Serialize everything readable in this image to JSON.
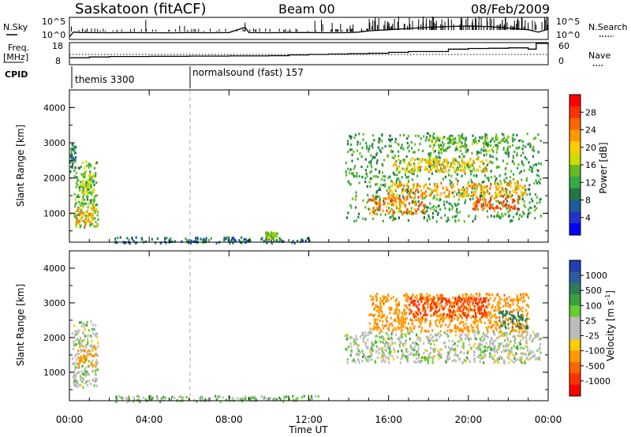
{
  "header": {
    "site": "Saskatoon (fitACF)",
    "beam": "Beam 00",
    "date": "08/Feb/2009"
  },
  "labels": {
    "nsky": "N.Sky",
    "nsky_top": "10^5",
    "nsky_bottom": "10^0",
    "nsearch": "N.Search",
    "nsearch_top": "10^5",
    "nsearch_bottom": "10^0",
    "freq_line1": "Freq.",
    "freq_line2": "[MHz]",
    "freq_top": "18",
    "freq_bottom": "8",
    "nave": "Nave",
    "nave_top": "60",
    "nave_bottom": "0",
    "cpid": "CPID",
    "cpid_1": "themis 3300",
    "cpid_2": "normalsound (fast) 157"
  },
  "colorbars": {
    "power": {
      "label": "Power [dB]",
      "ticks": [
        "28",
        "24",
        "20",
        "16",
        "12",
        "8",
        "4"
      ],
      "colors": [
        "#ff0000",
        "#ff3300",
        "#ff6600",
        "#ff9900",
        "#ffcc00",
        "#ccdd00",
        "#66bb22",
        "#33aa44",
        "#227744",
        "#1f5c99",
        "#2233cc",
        "#0000ff"
      ]
    },
    "velocity": {
      "label": "Velocity [m s^-1]",
      "ticks": [
        "1000",
        "500",
        "100",
        "25",
        "-25",
        "-100",
        "-500",
        "-1000"
      ],
      "colors": [
        "#1f3fb0",
        "#2f5aa0",
        "#2e7a5a",
        "#3aa03a",
        "#66cc33",
        "#bbbbbb",
        "#bbbbbb",
        "#ffcc00",
        "#ff9900",
        "#ff6600",
        "#ff3300",
        "#ff0000"
      ]
    }
  },
  "chart_data": [
    {
      "type": "line",
      "name": "N.Sky / N.Search",
      "xlim": [
        0,
        24
      ],
      "log_scale": true,
      "ylim": [
        1,
        100000
      ],
      "tick_labels_y": [
        "10^0",
        "10^5"
      ],
      "x": [
        0,
        0.2,
        0.6,
        1,
        2,
        3,
        4,
        5,
        6,
        7,
        8,
        8.8,
        9,
        10,
        11,
        12,
        13,
        14,
        14.5,
        15,
        16,
        17,
        18,
        19,
        20,
        21,
        22,
        23,
        23.5,
        24
      ],
      "series": [
        {
          "values": [
            3,
            40,
            30,
            30,
            28,
            30,
            28,
            27,
            30,
            28,
            30,
            600,
            30,
            28,
            30,
            30,
            28,
            30,
            40,
            80,
            150,
            300,
            600,
            900,
            1200,
            900,
            400,
            150,
            40,
            200
          ]
        }
      ]
    },
    {
      "type": "line",
      "name": "Freq / Nave",
      "xlim": [
        0,
        24
      ],
      "y_left": {
        "range": [
          8,
          18
        ],
        "ticks": [
          "8",
          "18"
        ]
      },
      "y_right": {
        "range": [
          0,
          60
        ],
        "ticks": [
          "0",
          "60"
        ]
      },
      "x": [
        0,
        1,
        2,
        4,
        6,
        8,
        10,
        11,
        12,
        13,
        14,
        15,
        16,
        17,
        18,
        19,
        20,
        21,
        22,
        23,
        23.4,
        24
      ],
      "series": [
        {
          "values": [
            11,
            11.4,
            11.6,
            11.7,
            11.8,
            11.9,
            12.0,
            12.4,
            12.6,
            12.8,
            13.0,
            13.2,
            13.6,
            14.0,
            14.0,
            15.2,
            15.5,
            15.6,
            15.8,
            15.2,
            18,
            17
          ]
        }
      ]
    },
    {
      "type": "heatmap",
      "name": "Power",
      "xlim": [
        0,
        24
      ],
      "ylim": [
        180,
        4500
      ],
      "x_ticks": [
        "00:00",
        "04:00",
        "08:00",
        "12:00",
        "16:00",
        "20:00",
        "00:00"
      ],
      "y_ticks": [
        "1000",
        "2000",
        "3000",
        "4000"
      ],
      "ylabel": "Slant Range [km]",
      "blobs": [
        {
          "x": [
            0.2,
            1.4
          ],
          "y": [
            600,
            2500
          ],
          "level": 14
        },
        {
          "x": [
            0.3,
            1.2
          ],
          "y": [
            700,
            1200
          ],
          "level": 22
        },
        {
          "x": [
            0.0,
            0.3
          ],
          "y": [
            2200,
            3000
          ],
          "level": 10
        },
        {
          "x": [
            0.5,
            1.2
          ],
          "y": [
            1600,
            2200
          ],
          "level": 16
        },
        {
          "x": [
            2.2,
            12.0
          ],
          "y": [
            180,
            350
          ],
          "level": 8
        },
        {
          "x": [
            9.8,
            10.4
          ],
          "y": [
            300,
            500
          ],
          "level": 16
        },
        {
          "x": [
            13.8,
            23.6
          ],
          "y": [
            800,
            3300
          ],
          "level": 12
        },
        {
          "x": [
            15.0,
            17.8
          ],
          "y": [
            1000,
            1500
          ],
          "level": 24
        },
        {
          "x": [
            16.0,
            22.8
          ],
          "y": [
            1500,
            1900
          ],
          "level": 22
        },
        {
          "x": [
            16.2,
            21.0
          ],
          "y": [
            2200,
            2600
          ],
          "level": 20
        },
        {
          "x": [
            20.2,
            22.6
          ],
          "y": [
            1100,
            1500
          ],
          "level": 26
        },
        {
          "x": [
            18.0,
            22.0
          ],
          "y": [
            2800,
            3200
          ],
          "level": 14
        }
      ]
    },
    {
      "type": "heatmap",
      "name": "Velocity",
      "xlim": [
        0,
        24
      ],
      "ylim": [
        180,
        4500
      ],
      "x_ticks": [
        "00:00",
        "04:00",
        "08:00",
        "12:00",
        "16:00",
        "20:00",
        "00:00"
      ],
      "y_ticks": [
        "1000",
        "2000",
        "3000",
        "4000"
      ],
      "ylabel": "Slant Range [km]",
      "xlabel": "Time UT",
      "blobs": [
        {
          "x": [
            0.1,
            1.4
          ],
          "y": [
            600,
            2500
          ],
          "level": 0
        },
        {
          "x": [
            0.4,
            1.3
          ],
          "y": [
            1200,
            1800
          ],
          "level": -150
        },
        {
          "x": [
            2.2,
            12.5
          ],
          "y": [
            180,
            350
          ],
          "level": 30
        },
        {
          "x": [
            13.8,
            23.6
          ],
          "y": [
            1300,
            2200
          ],
          "level": 0
        },
        {
          "x": [
            15.0,
            23.0
          ],
          "y": [
            2200,
            3300
          ],
          "level": -200
        },
        {
          "x": [
            17.0,
            21.0
          ],
          "y": [
            2600,
            3200
          ],
          "level": -600
        },
        {
          "x": [
            21.5,
            23.0
          ],
          "y": [
            2300,
            2800
          ],
          "level": 150
        }
      ]
    }
  ]
}
